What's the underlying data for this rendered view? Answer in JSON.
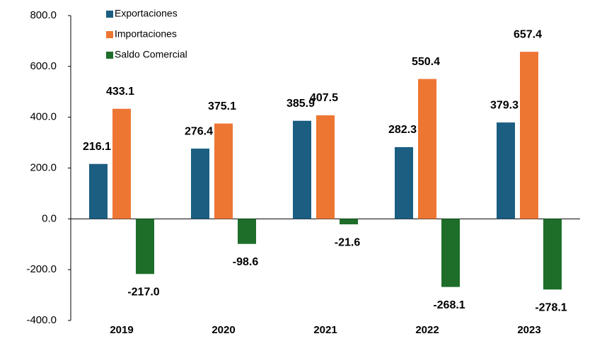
{
  "chart_data": {
    "type": "bar",
    "categories": [
      "2019",
      "2020",
      "2021",
      "2022",
      "2023"
    ],
    "series": [
      {
        "name": "Exportaciones",
        "color": "#1b5e82",
        "values": [
          216.1,
          276.4,
          385.9,
          282.3,
          379.3
        ],
        "value_labels": [
          "216.1",
          "276.4",
          "385.9",
          "282.3",
          "379.3"
        ]
      },
      {
        "name": "Importaciones",
        "color": "#ee7633",
        "values": [
          433.1,
          375.1,
          407.5,
          550.4,
          657.4
        ],
        "value_labels": [
          "433.1",
          "375.1",
          "407.5",
          "550.4",
          "657.4"
        ]
      },
      {
        "name": "Saldo Comercial",
        "color": "#1e6e2a",
        "values": [
          -217.0,
          -98.6,
          -21.6,
          -268.1,
          -278.1
        ],
        "value_labels": [
          "-217.0",
          "-98.6",
          "-21.6",
          "-268.1",
          "-278.1"
        ]
      }
    ],
    "ylim": [
      -400,
      800
    ],
    "yticks": [
      {
        "value": -400,
        "label": "-400.0"
      },
      {
        "value": -200,
        "label": "-200.0"
      },
      {
        "value": 0,
        "label": "0.0"
      },
      {
        "value": 200,
        "label": "200.0"
      },
      {
        "value": 400,
        "label": "400.0"
      },
      {
        "value": 600,
        "label": "600.0"
      },
      {
        "value": 800,
        "label": "800.0"
      }
    ],
    "legend": "upper left"
  }
}
